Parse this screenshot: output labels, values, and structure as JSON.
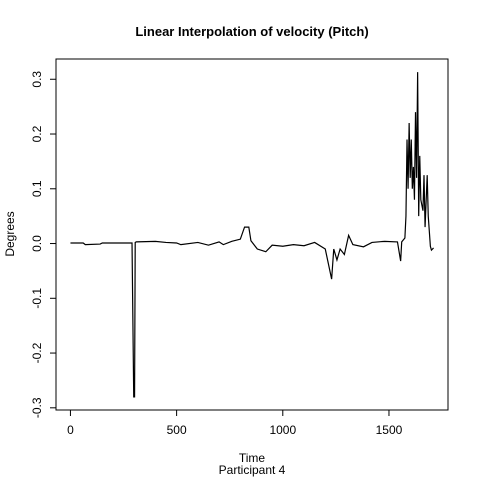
{
  "chart_data": {
    "type": "line",
    "title": "Linear Interpolation of velocity (Pitch)",
    "xlabel": "Time",
    "subtitle": "Participant  4",
    "ylabel": "Degrees",
    "xlim": [
      -68,
      1778
    ],
    "ylim": [
      -0.304,
      0.337
    ],
    "xticks": [
      0,
      500,
      1000,
      1500
    ],
    "yticks": [
      -0.3,
      -0.2,
      -0.1,
      {
        "value": 0,
        "label": "0.0"
      },
      0.1,
      0.2,
      0.3
    ],
    "series": [
      {
        "name": "Pitch velocity",
        "color": "#000000",
        "x": [
          0,
          60,
          70,
          140,
          150,
          290,
          298,
          302,
          305,
          310,
          400,
          450,
          500,
          520,
          600,
          650,
          700,
          720,
          760,
          800,
          820,
          840,
          850,
          880,
          920,
          950,
          1000,
          1050,
          1100,
          1150,
          1200,
          1230,
          1240,
          1255,
          1270,
          1290,
          1310,
          1330,
          1380,
          1420,
          1480,
          1540,
          1555,
          1560,
          1575,
          1580,
          1585,
          1590,
          1595,
          1600,
          1605,
          1610,
          1615,
          1620,
          1625,
          1630,
          1635,
          1640,
          1645,
          1650,
          1660,
          1665,
          1670,
          1680,
          1685,
          1695,
          1700,
          1710
        ],
        "values": [
          0.001,
          0.001,
          -0.002,
          -0.001,
          0.001,
          0.001,
          -0.28,
          -0.28,
          0.002,
          0.003,
          0.004,
          0.002,
          0.001,
          -0.002,
          0.002,
          -0.003,
          0.003,
          -0.002,
          0.004,
          0.008,
          0.03,
          0.03,
          0.005,
          -0.01,
          -0.015,
          -0.003,
          -0.005,
          -0.002,
          -0.004,
          0.002,
          -0.01,
          -0.065,
          -0.01,
          -0.03,
          -0.01,
          -0.02,
          0.015,
          -0.002,
          -0.006,
          0.002,
          0.004,
          0.003,
          -0.032,
          0.003,
          0.01,
          0.05,
          0.19,
          0.1,
          0.22,
          0.12,
          0.19,
          0.1,
          0.14,
          0.08,
          0.24,
          0.12,
          0.313,
          0.05,
          0.16,
          0.08,
          0.06,
          0.125,
          0.03,
          0.125,
          0.05,
          -0.005,
          -0.012,
          -0.008
        ]
      }
    ]
  }
}
